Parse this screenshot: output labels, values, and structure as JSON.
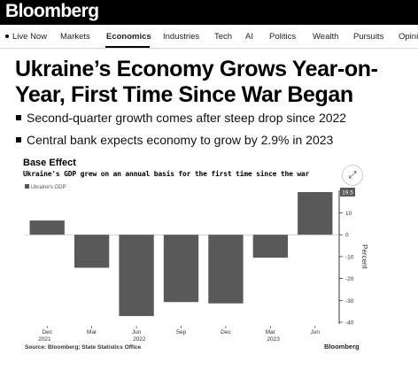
{
  "site": {
    "brand": "Bloomberg"
  },
  "nav": {
    "items": [
      "Live Now",
      "Markets",
      "Economics",
      "Industries",
      "Tech",
      "AI",
      "Politics",
      "Wealth",
      "Pursuits",
      "Opini"
    ],
    "active": "Economics"
  },
  "article": {
    "headline_line1": "Ukraine’s Economy Grows Year-on-",
    "headline_line2": "Year, First Time Since War Began",
    "bullets": [
      "Second-quarter growth comes after steep drop since 2022",
      "Central bank expects economy to grow by 2.9% in 2023"
    ]
  },
  "chart": {
    "expand_icon": "expand-icon",
    "source": "Source: Bloomberg; State Statistics Office",
    "watermark": "Bloomberg"
  },
  "chart_data": {
    "type": "bar",
    "title": "Base Effect",
    "subtitle": "Ukraine's GDP grew on an annual basis for the first time since the war",
    "legend": [
      "Ukraine's GDP"
    ],
    "legend_position": "top-left",
    "ylabel": "Percent",
    "ylim": [
      -40,
      19.5
    ],
    "yticks": [
      10,
      0,
      -10,
      -20,
      -30,
      -40
    ],
    "xtick_labels": [
      {
        "label": "Dec",
        "year": "2021"
      },
      {
        "label": "Mar",
        "year": ""
      },
      {
        "label": "Jun",
        "year": "2022"
      },
      {
        "label": "Sep",
        "year": ""
      },
      {
        "label": "Dec",
        "year": ""
      },
      {
        "label": "Mar",
        "year": "2023"
      },
      {
        "label": "Jun",
        "year": ""
      }
    ],
    "categories": [
      "Dec 2021",
      "Mar 2022",
      "Jun 2022",
      "Sep 2022",
      "Dec 2022",
      "Mar 2023",
      "Jun 2023"
    ],
    "series": [
      {
        "name": "Ukraine's GDP",
        "values": [
          6.5,
          -15.1,
          -37.2,
          -30.8,
          -31.4,
          -10.5,
          19.5
        ]
      }
    ],
    "last_value_label": "19.5",
    "bar_color": "#595959",
    "grid": false
  }
}
